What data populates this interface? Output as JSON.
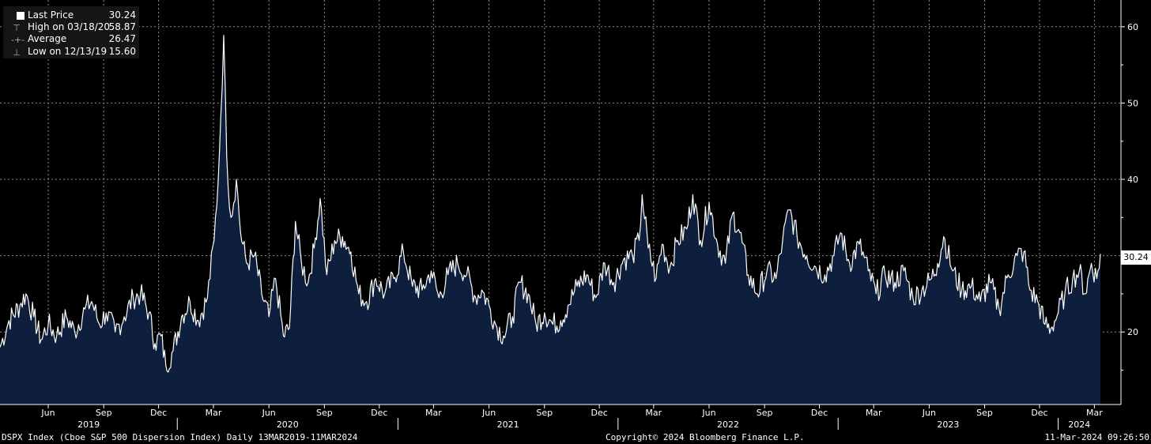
{
  "legend": {
    "last": {
      "label": "Last Price",
      "value": "30.24"
    },
    "high": {
      "label": "High on 03/18/20",
      "value": "58.87"
    },
    "average": {
      "label": "Average",
      "value": "26.47"
    },
    "low": {
      "label": "Low on 12/13/19",
      "value": "15.60"
    }
  },
  "footer": {
    "left": "DSPX Index (Cboe S&P 500 Dispersion Index)  Daily 13MAR2019-11MAR2024",
    "center": "Copyright© 2024 Bloomberg Finance L.P.",
    "right": "11-Mar-2024 09:26:50"
  },
  "last_value_label": "30.24",
  "colors": {
    "background": "#000000",
    "line": "#ffffff",
    "area": "#0d1f3c",
    "grid": "#8c8c8c"
  },
  "chart_data": {
    "type": "area",
    "title": "",
    "xlabel": "",
    "ylabel": "",
    "ylim": [
      10.5,
      63.5
    ],
    "y_ticks": [
      20,
      30,
      40,
      50,
      60
    ],
    "y_axis_position": "right",
    "grid": true,
    "x_month_ticks": [
      "Jun",
      "Sep",
      "Dec",
      "Mar",
      "Jun",
      "Sep",
      "Dec",
      "Mar",
      "Jun",
      "Sep",
      "Dec",
      "Mar",
      "Jun",
      "Sep",
      "Dec",
      "Mar",
      "Jun",
      "Sep",
      "Dec",
      "Mar"
    ],
    "x_year_labels": [
      "2019",
      "2020",
      "2021",
      "2022",
      "2023",
      "2024"
    ],
    "series": [
      {
        "name": "Last Price",
        "points": [
          [
            "2019-03-13",
            18.0
          ],
          [
            "2019-03-28",
            21.5
          ],
          [
            "2019-04-15",
            23.5
          ],
          [
            "2019-04-25",
            25.0
          ],
          [
            "2019-05-08",
            22.0
          ],
          [
            "2019-05-20",
            19.0
          ],
          [
            "2019-06-01",
            21.0
          ],
          [
            "2019-06-15",
            19.5
          ],
          [
            "2019-07-01",
            22.0
          ],
          [
            "2019-07-15",
            20.0
          ],
          [
            "2019-08-01",
            23.0
          ],
          [
            "2019-08-12",
            24.0
          ],
          [
            "2019-08-25",
            21.0
          ],
          [
            "2019-09-05",
            22.5
          ],
          [
            "2019-09-20",
            20.0
          ],
          [
            "2019-10-05",
            22.0
          ],
          [
            "2019-10-20",
            24.5
          ],
          [
            "2019-11-01",
            25.0
          ],
          [
            "2019-11-15",
            22.5
          ],
          [
            "2019-11-25",
            18.5
          ],
          [
            "2019-12-05",
            19.5
          ],
          [
            "2019-12-13",
            15.6
          ],
          [
            "2019-12-25",
            17.5
          ],
          [
            "2020-01-08",
            22.0
          ],
          [
            "2020-01-22",
            24.0
          ],
          [
            "2020-02-05",
            21.5
          ],
          [
            "2020-02-20",
            24.5
          ],
          [
            "2020-03-02",
            32.0
          ],
          [
            "2020-03-09",
            40.0
          ],
          [
            "2020-03-13",
            48.0
          ],
          [
            "2020-03-18",
            58.87
          ],
          [
            "2020-03-23",
            43.0
          ],
          [
            "2020-03-30",
            35.0
          ],
          [
            "2020-04-08",
            40.0
          ],
          [
            "2020-04-15",
            33.0
          ],
          [
            "2020-04-25",
            29.0
          ],
          [
            "2020-05-08",
            30.0
          ],
          [
            "2020-05-20",
            25.0
          ],
          [
            "2020-06-01",
            22.0
          ],
          [
            "2020-06-12",
            27.0
          ],
          [
            "2020-06-25",
            19.5
          ],
          [
            "2020-07-05",
            20.5
          ],
          [
            "2020-07-15",
            34.5
          ],
          [
            "2020-07-25",
            29.0
          ],
          [
            "2020-08-05",
            26.5
          ],
          [
            "2020-08-15",
            31.0
          ],
          [
            "2020-08-25",
            37.5
          ],
          [
            "2020-09-05",
            27.5
          ],
          [
            "2020-09-18",
            32.0
          ],
          [
            "2020-10-01",
            32.5
          ],
          [
            "2020-10-15",
            30.5
          ],
          [
            "2020-10-28",
            25.0
          ],
          [
            "2020-11-10",
            24.0
          ],
          [
            "2020-11-25",
            27.0
          ],
          [
            "2020-12-10",
            25.0
          ],
          [
            "2020-12-25",
            27.0
          ],
          [
            "2021-01-10",
            30.5
          ],
          [
            "2021-01-25",
            26.0
          ],
          [
            "2021-02-10",
            25.5
          ],
          [
            "2021-02-25",
            28.0
          ],
          [
            "2021-03-10",
            24.5
          ],
          [
            "2021-03-25",
            27.5
          ],
          [
            "2021-04-10",
            29.0
          ],
          [
            "2021-04-25",
            27.5
          ],
          [
            "2021-05-10",
            24.5
          ],
          [
            "2021-05-20",
            25.5
          ],
          [
            "2021-06-01",
            23.5
          ],
          [
            "2021-06-12",
            21.0
          ],
          [
            "2021-06-25",
            19.5
          ],
          [
            "2021-07-10",
            22.0
          ],
          [
            "2021-07-22",
            26.5
          ],
          [
            "2021-08-05",
            25.0
          ],
          [
            "2021-08-18",
            21.0
          ],
          [
            "2021-09-01",
            22.5
          ],
          [
            "2021-09-15",
            21.0
          ],
          [
            "2021-09-28",
            21.5
          ],
          [
            "2021-10-10",
            23.5
          ],
          [
            "2021-10-25",
            26.0
          ],
          [
            "2021-11-10",
            27.5
          ],
          [
            "2021-11-25",
            24.5
          ],
          [
            "2021-12-10",
            29.0
          ],
          [
            "2021-12-25",
            26.5
          ],
          [
            "2022-01-10",
            29.5
          ],
          [
            "2022-01-25",
            30.0
          ],
          [
            "2022-02-05",
            32.0
          ],
          [
            "2022-02-10",
            38.0
          ],
          [
            "2022-02-20",
            31.0
          ],
          [
            "2022-03-05",
            27.0
          ],
          [
            "2022-03-15",
            31.5
          ],
          [
            "2022-03-28",
            28.5
          ],
          [
            "2022-04-10",
            32.0
          ],
          [
            "2022-04-25",
            33.5
          ],
          [
            "2022-05-05",
            38.0
          ],
          [
            "2022-05-18",
            32.0
          ],
          [
            "2022-06-01",
            37.0
          ],
          [
            "2022-06-15",
            31.5
          ],
          [
            "2022-06-28",
            29.0
          ],
          [
            "2022-07-10",
            35.5
          ],
          [
            "2022-07-22",
            33.0
          ],
          [
            "2022-08-05",
            27.5
          ],
          [
            "2022-08-20",
            25.0
          ],
          [
            "2022-09-05",
            28.0
          ],
          [
            "2022-09-20",
            27.0
          ],
          [
            "2022-10-01",
            32.0
          ],
          [
            "2022-10-12",
            36.0
          ],
          [
            "2022-10-25",
            32.5
          ],
          [
            "2022-11-10",
            30.0
          ],
          [
            "2022-11-25",
            28.5
          ],
          [
            "2022-12-10",
            27.5
          ],
          [
            "2022-12-25",
            30.0
          ],
          [
            "2023-01-05",
            33.0
          ],
          [
            "2023-01-20",
            29.0
          ],
          [
            "2023-02-05",
            31.5
          ],
          [
            "2023-02-20",
            28.0
          ],
          [
            "2023-03-05",
            25.0
          ],
          [
            "2023-03-20",
            27.5
          ],
          [
            "2023-04-05",
            26.5
          ],
          [
            "2023-04-20",
            28.0
          ],
          [
            "2023-05-05",
            24.5
          ],
          [
            "2023-05-20",
            25.5
          ],
          [
            "2023-06-05",
            27.0
          ],
          [
            "2023-06-15",
            29.0
          ],
          [
            "2023-06-25",
            32.5
          ],
          [
            "2023-07-10",
            28.0
          ],
          [
            "2023-07-25",
            25.5
          ],
          [
            "2023-08-10",
            26.0
          ],
          [
            "2023-08-25",
            24.0
          ],
          [
            "2023-09-10",
            26.5
          ],
          [
            "2023-09-25",
            23.0
          ],
          [
            "2023-10-10",
            27.5
          ],
          [
            "2023-10-25",
            30.0
          ],
          [
            "2023-11-05",
            30.5
          ],
          [
            "2023-11-15",
            25.5
          ],
          [
            "2023-11-28",
            24.0
          ],
          [
            "2023-12-10",
            21.0
          ],
          [
            "2023-12-20",
            20.5
          ],
          [
            "2024-01-01",
            22.5
          ],
          [
            "2024-01-12",
            25.0
          ],
          [
            "2024-01-25",
            27.0
          ],
          [
            "2024-02-05",
            28.0
          ],
          [
            "2024-02-15",
            25.0
          ],
          [
            "2024-02-25",
            29.0
          ],
          [
            "2024-03-05",
            27.0
          ],
          [
            "2024-03-11",
            30.24
          ]
        ]
      }
    ]
  }
}
